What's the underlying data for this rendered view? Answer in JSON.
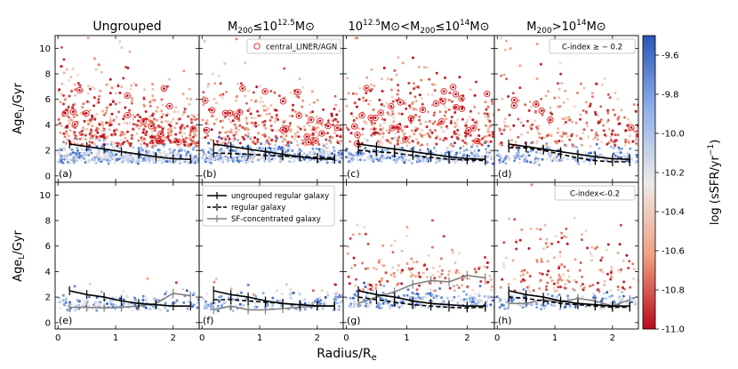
{
  "chart_data": {
    "type": "scatter",
    "figure_xlabel": "Radius/R",
    "figure_xlabel_sub": "e",
    "row_ylabels": [
      {
        "main": "Age",
        "sub": "L",
        "unit": "/Gyr"
      },
      {
        "main": "Age",
        "sub": "L",
        "unit": "/Gyr"
      }
    ],
    "column_titles": [
      {
        "pre": "Ungrouped",
        "mid": "",
        "post": ""
      },
      {
        "pre": "M",
        "sub": "200",
        "mid": "≤10",
        "sup": "12.5",
        "post": "M⊙"
      },
      {
        "pre": "10",
        "sup1": "12.5",
        "mid": "M⊙<M",
        "sub": "200",
        "mid2": "≤10",
        "sup2": "14",
        "post": "M⊙"
      },
      {
        "pre": "M",
        "sub": "200",
        "mid": ">10",
        "sup": "14",
        "post": "M⊙"
      }
    ],
    "column_title_text": [
      "Ungrouped",
      "M200 ≤ 10^12.5 M⊙",
      "10^12.5 M⊙ < M200 ≤ 10^14 M⊙",
      "M200 > 10^14 M⊙"
    ],
    "panel_labels": [
      "(a)",
      "(b)",
      "(c)",
      "(d)",
      "(e)",
      "(f)",
      "(g)",
      "(h)"
    ],
    "xlim": [
      -0.05,
      2.45
    ],
    "ylim": [
      -0.5,
      11
    ],
    "xticks": [
      0,
      1,
      2
    ],
    "yticks": [
      0,
      2,
      4,
      6,
      8,
      10
    ],
    "colorbar": {
      "label": "log (sSFR/yr",
      "label_sup": "−1",
      "label_close": ")",
      "range": [
        -11.0,
        -9.5
      ],
      "ticks": [
        "-9.6",
        "-9.8",
        "-10.0",
        "-10.2",
        "-10.4",
        "-10.6",
        "-10.8",
        "-11.0"
      ],
      "tick_values": [
        -9.6,
        -9.8,
        -10.0,
        -10.2,
        -10.4,
        -10.6,
        -10.8,
        -11.0
      ],
      "low_color": "#b2182b",
      "mid_color": "#f7f7f7",
      "high_color": "#2166ac"
    },
    "legends": {
      "top_liner": "central_LINER/AGN",
      "top_cindex": "C-index  ≥ − 0.2",
      "bottom_cindex": "C-index<-0.2",
      "lines": [
        "ungrouped regular galaxy",
        "regular galaxy",
        "SF-concentrated galaxy"
      ]
    },
    "series_colors": {
      "ungrouped": "#000000",
      "regular": "#000000",
      "sfc": "#808080",
      "liner": "#e41a1c"
    },
    "profiles": {
      "x": [
        0.2,
        0.5,
        0.8,
        1.1,
        1.4,
        1.7,
        2.0,
        2.3
      ],
      "ungrouped_top": [
        2.5,
        2.3,
        2.1,
        1.9,
        1.7,
        1.5,
        1.35,
        1.3
      ],
      "ungrouped_bottom": [
        2.5,
        2.2,
        2.0,
        1.7,
        1.5,
        1.4,
        1.3,
        1.3
      ],
      "regular_b": [
        1.8,
        1.75,
        1.7,
        1.6,
        1.55,
        1.5,
        1.45,
        1.4
      ],
      "regular_c": [
        2.0,
        1.9,
        1.8,
        1.6,
        1.45,
        1.3,
        1.25,
        1.2
      ],
      "regular_d": [
        2.2,
        2.2,
        2.0,
        1.7,
        1.4,
        1.2,
        1.1,
        1.1
      ],
      "regular_f": [
        1.8,
        1.8,
        1.7,
        1.6,
        1.5,
        1.4,
        1.3,
        1.3
      ],
      "regular_g": [
        2.0,
        1.8,
        1.6,
        1.4,
        1.3,
        1.2,
        1.15,
        1.2
      ],
      "regular_h": [
        2.0,
        1.9,
        1.7,
        1.5,
        1.4,
        1.3,
        1.2,
        1.2
      ],
      "sfc_e": [
        1.2,
        1.2,
        1.15,
        1.2,
        1.3,
        1.5,
        2.3,
        2.1
      ],
      "sfc_f": [
        1.0,
        1.3,
        1.0,
        1.0,
        1.1,
        1.2,
        1.3,
        1.3
      ],
      "sfc_g": [
        1.5,
        2.0,
        2.4,
        3.0,
        3.3,
        3.2,
        3.7,
        3.5
      ],
      "sfc_h": [
        1.5,
        1.5,
        1.8,
        1.6,
        1.9,
        1.7,
        1.3,
        1.8
      ]
    }
  }
}
